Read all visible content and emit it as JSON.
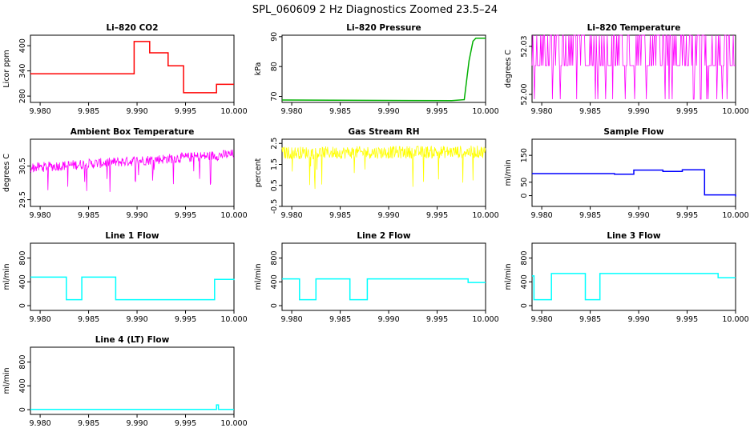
{
  "title": "SPL_060609  2 Hz Diagnostics Zoomed 23.5–24",
  "chart_data": [
    {
      "type": "line",
      "title": "Li–820 CO2",
      "ylabel": "Licor ppm",
      "color": "#ff0000",
      "xlim": [
        9.979,
        10.0
      ],
      "ylim": [
        265,
        425
      ],
      "yticks": [
        280,
        340,
        400
      ],
      "xticks": [
        "9.980",
        "9.985",
        "9.990",
        "9.995",
        "10.000"
      ],
      "xticks_val": [
        9.98,
        9.985,
        9.99,
        9.995,
        10.0
      ],
      "steps": [
        [
          9.979,
          333
        ],
        [
          9.9897,
          410
        ],
        [
          9.9913,
          383
        ],
        [
          9.9932,
          352
        ],
        [
          9.9948,
          288
        ],
        [
          9.9982,
          308
        ],
        [
          10.0,
          308
        ]
      ]
    },
    {
      "type": "line",
      "title": "Li–820 Pressure",
      "ylabel": "kPa",
      "color": "#00b000",
      "xlim": [
        9.979,
        10.0
      ],
      "ylim": [
        68,
        90.5
      ],
      "yticks": [
        70,
        80,
        90
      ],
      "xticks": [
        "9.980",
        "9.985",
        "9.990",
        "9.995",
        "10.000"
      ],
      "xticks_val": [
        9.98,
        9.985,
        9.99,
        9.995,
        10.0
      ],
      "points": [
        [
          9.979,
          68.8
        ],
        [
          9.9965,
          68.6
        ],
        [
          9.9978,
          68.9
        ],
        [
          9.9983,
          82
        ],
        [
          9.9987,
          88.5
        ],
        [
          9.999,
          89.5
        ],
        [
          10.0,
          89.5
        ]
      ]
    },
    {
      "type": "line",
      "title": "Li–820 Temperature",
      "ylabel": "degrees C",
      "color": "#ff00ff",
      "xlim": [
        9.979,
        10.0
      ],
      "ylim": [
        51.995,
        52.037
      ],
      "yticks": [
        52.0,
        52.03
      ],
      "yticks_label": [
        "52.00",
        "52.03"
      ],
      "xticks": [
        "9.980",
        "9.985",
        "9.990",
        "9.995",
        "10.000"
      ],
      "xticks_val": [
        9.98,
        9.985,
        9.99,
        9.995,
        10.0
      ],
      "levels": [
        51.997,
        52.018,
        52.037
      ]
    },
    {
      "type": "line",
      "title": "Ambient Box Temperature",
      "ylabel": "degrees C",
      "color": "#ff00ff",
      "xlim": [
        9.979,
        10.0
      ],
      "ylim": [
        29.3,
        31.3
      ],
      "yticks": [
        29.5,
        30.5
      ],
      "xticks": [
        "9.980",
        "9.985",
        "9.990",
        "9.995",
        "10.000"
      ],
      "xticks_val": [
        9.98,
        9.985,
        9.99,
        9.995,
        10.0
      ],
      "trend": [
        [
          9.979,
          30.45
        ],
        [
          10.0,
          30.85
        ]
      ],
      "noise": 0.15
    },
    {
      "type": "line",
      "title": "Gas Stream RH",
      "ylabel": "percent",
      "color": "#ffff00",
      "xlim": [
        9.979,
        10.0
      ],
      "ylim": [
        -0.5,
        2.7
      ],
      "yticks": [
        -0.5,
        0.5,
        1.5,
        2.5
      ],
      "xticks": [
        "9.980",
        "9.985",
        "9.990",
        "9.995",
        "10.000"
      ],
      "xticks_val": [
        9.98,
        9.985,
        9.99,
        9.995,
        10.0
      ],
      "trend": [
        [
          9.979,
          2.05
        ],
        [
          10.0,
          2.1
        ]
      ],
      "noise": 0.3
    },
    {
      "type": "line",
      "title": "Sample Flow",
      "ylabel": "ml/min",
      "color": "#0000ff",
      "xlim": [
        9.979,
        10.0
      ],
      "ylim": [
        -40,
        210
      ],
      "yticks": [
        0,
        50,
        150
      ],
      "xticks": [
        "9.980",
        "9.985",
        "9.990",
        "9.995",
        "10.000"
      ],
      "xticks_val": [
        9.98,
        9.985,
        9.99,
        9.995,
        10.0
      ],
      "steps": [
        [
          9.979,
          82
        ],
        [
          9.9875,
          80
        ],
        [
          9.9895,
          95
        ],
        [
          9.9925,
          90
        ],
        [
          9.9945,
          96
        ],
        [
          9.9968,
          3
        ],
        [
          10.0,
          -3
        ]
      ]
    },
    {
      "type": "line",
      "title": "Line 1 Flow",
      "ylabel": "ml/min",
      "color": "#00ffff",
      "xlim": [
        9.979,
        10.0
      ],
      "ylim": [
        -80,
        1050
      ],
      "yticks": [
        0,
        400,
        800
      ],
      "xticks": [
        "9.980",
        "9.985",
        "9.990",
        "9.995",
        "10.000"
      ],
      "xticks_val": [
        9.98,
        9.985,
        9.99,
        9.995,
        10.0
      ],
      "steps": [
        [
          9.979,
          480
        ],
        [
          9.9827,
          100
        ],
        [
          9.9843,
          480
        ],
        [
          9.9878,
          100
        ],
        [
          9.998,
          440
        ],
        [
          10.0,
          430
        ]
      ]
    },
    {
      "type": "line",
      "title": "Line 2 Flow",
      "ylabel": "ml/min",
      "color": "#00ffff",
      "xlim": [
        9.979,
        10.0
      ],
      "ylim": [
        -80,
        1050
      ],
      "yticks": [
        0,
        400,
        800
      ],
      "xticks": [
        "9.980",
        "9.985",
        "9.990",
        "9.995",
        "10.000"
      ],
      "xticks_val": [
        9.98,
        9.985,
        9.99,
        9.995,
        10.0
      ],
      "steps": [
        [
          9.979,
          450
        ],
        [
          9.9808,
          100
        ],
        [
          9.9825,
          450
        ],
        [
          9.986,
          100
        ],
        [
          9.9878,
          450
        ],
        [
          9.9982,
          390
        ],
        [
          10.0,
          390
        ]
      ]
    },
    {
      "type": "line",
      "title": "Line 3 Flow",
      "ylabel": "ml/min",
      "color": "#00ffff",
      "xlim": [
        9.979,
        10.0
      ],
      "ylim": [
        -80,
        1050
      ],
      "yticks": [
        0,
        400,
        800
      ],
      "xticks": [
        "9.980",
        "9.985",
        "9.990",
        "9.995",
        "10.000"
      ],
      "xticks_val": [
        9.98,
        9.985,
        9.99,
        9.995,
        10.0
      ],
      "steps": [
        [
          9.979,
          500
        ],
        [
          9.9792,
          100
        ],
        [
          9.981,
          540
        ],
        [
          9.9845,
          100
        ],
        [
          9.986,
          540
        ],
        [
          9.9982,
          470
        ],
        [
          10.0,
          470
        ]
      ]
    },
    {
      "type": "line",
      "title": "Line 4 (LT) Flow",
      "ylabel": "ml/min",
      "color": "#00ffff",
      "xlim": [
        9.979,
        10.0
      ],
      "ylim": [
        -80,
        1050
      ],
      "yticks": [
        0,
        400,
        800
      ],
      "xticks": [
        "9.980",
        "9.985",
        "9.990",
        "9.995",
        "10.000"
      ],
      "xticks_val": [
        9.98,
        9.985,
        9.99,
        9.995,
        10.0
      ],
      "steps": [
        [
          9.979,
          5
        ],
        [
          9.9982,
          80
        ],
        [
          9.9984,
          5
        ],
        [
          10.0,
          5
        ]
      ]
    }
  ]
}
